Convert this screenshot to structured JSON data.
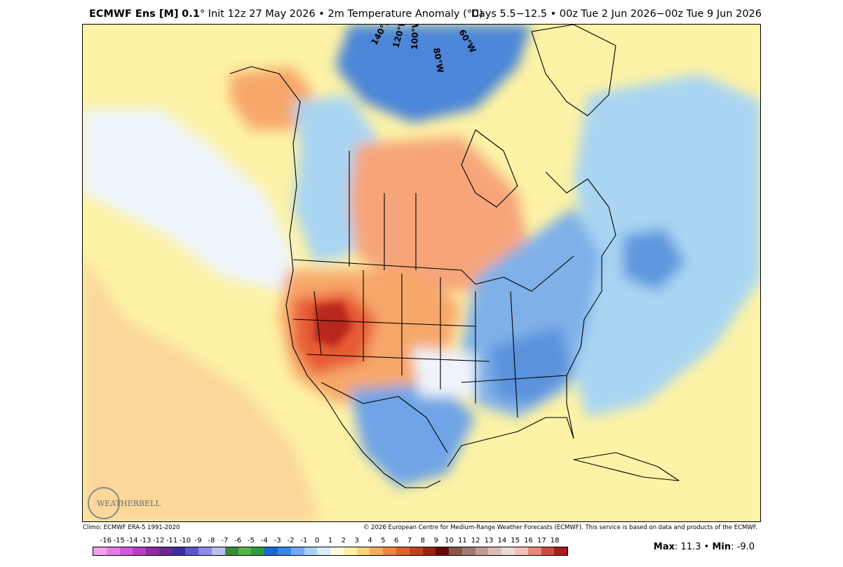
{
  "header": {
    "model": "ECMWF Ens [M]",
    "resolution": "0.1",
    "degree": "°",
    "init": "Init 12z 27 May 2026",
    "bullet": "•",
    "field": "2m Temperature Anomaly (°C)",
    "period": "Days 5.5−12.5 • 00z Tue 2 Jun 2026−00z Tue 9 Jun 2026"
  },
  "map": {
    "longitude_labels": [
      "140°W",
      "120°W",
      "100°W",
      "80°W",
      "60°W"
    ],
    "logo": "WEATHERBELL",
    "colors": {
      "ocean_base": "#fdf2a6",
      "far_pacific": "#fbd79a",
      "land_west_warm": "#f7a76a",
      "land_hot": "#e85b34",
      "land_hot_core": "#b8281c",
      "canada_warm": "#f6a57a",
      "east_cool": "#7fb1e8",
      "southeast_cool": "#5a92dc",
      "mexico_cool": "#6fa4e6",
      "arctic_cool": "#4c86d8",
      "atlantic_cool": "#a9d5f3",
      "atlantic_core": "#5e98de",
      "neutral": "#eef4fb",
      "border_lines": "#000000"
    }
  },
  "credits": {
    "climo": "Climo: ECMWF ERA-5 1991-2020",
    "copyright": "© 2026 European Centre for Medium-Range Weather Forecasts (ECMWF). This service is based on data and products of the ECMWF."
  },
  "colorbar": {
    "labels": [
      "-16",
      "-15",
      "-14",
      "-13",
      "-12",
      "-11",
      "-10",
      "-9",
      "-8",
      "-7",
      "-6",
      "-5",
      "-4",
      "-3",
      "-2",
      "-1",
      "0",
      "1",
      "2",
      "3",
      "4",
      "5",
      "6",
      "7",
      "8",
      "9",
      "10",
      "11",
      "12",
      "13",
      "14",
      "15",
      "16",
      "17",
      "18"
    ],
    "colors": [
      "#f2a0f0",
      "#e47ee6",
      "#d25ad8",
      "#b83ec4",
      "#8e2ca0",
      "#6a2a8e",
      "#3c2e9c",
      "#5a58c8",
      "#8c8ce4",
      "#b8c0ee",
      "#3a8a3a",
      "#56b24c",
      "#2f9a3e",
      "#1f64d6",
      "#3a86e8",
      "#73aaf0",
      "#a6d0f6",
      "#d6ecfa",
      "#fffce0",
      "#fff2a2",
      "#fbd47c",
      "#f6ac5e",
      "#ee8446",
      "#e0602e",
      "#c63e20",
      "#9e2214",
      "#6a0a08",
      "#8a5648",
      "#a47b70",
      "#c19b94",
      "#dbbcb6",
      "#edd8d4",
      "#f3c2b6",
      "#e68a7a",
      "#cc4a40",
      "#a81c1c"
    ]
  },
  "stats": {
    "max_label": "Max",
    "max_value": ": 11.3",
    "bullet": "•",
    "min_label": "Min",
    "min_value": ": -9.0"
  }
}
